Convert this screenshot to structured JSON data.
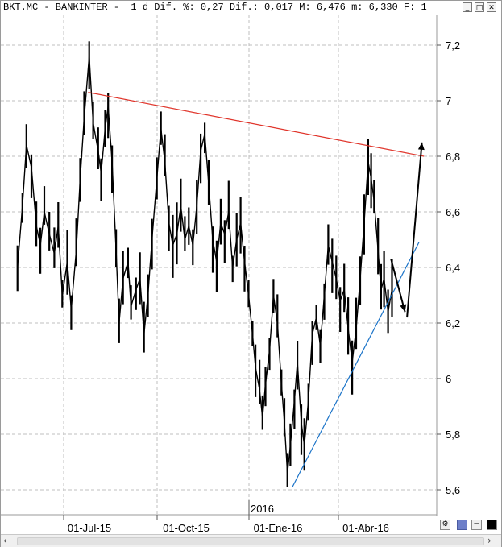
{
  "window": {
    "title": "BKT.MC - BANKINTER -  1 d Dif. %: 0,27 Dif.: 0,017 M: 6,476 m: 6,330 F: 1"
  },
  "colors": {
    "resistance": "#e0342a",
    "support": "#1a73c8",
    "grid": "#bfbfbf",
    "price": "#000000"
  },
  "chart_data": {
    "type": "line",
    "title": "",
    "xlabel": "",
    "ylabel": "",
    "ylim": [
      5.55,
      7.35
    ],
    "yticks": [
      "7,2",
      "7",
      "6,8",
      "6,6",
      "6,4",
      "6,2",
      "6",
      "5,8",
      "5,6"
    ],
    "ytick_values": [
      7.2,
      7.0,
      6.8,
      6.6,
      6.4,
      6.2,
      6.0,
      5.8,
      5.6
    ],
    "xticks": [
      "01-Jul-15",
      "01-Oct-15",
      "01-Ene-16",
      "01-Abr-16"
    ],
    "year_marker": "2016",
    "grid": true,
    "series": [
      {
        "points": [
          [
            "2015-05-14",
            6.4
          ],
          [
            "2015-05-19",
            6.62
          ],
          [
            "2015-05-23",
            6.84
          ],
          [
            "2015-05-28",
            6.76
          ],
          [
            "2015-06-02",
            6.55
          ],
          [
            "2015-06-06",
            6.48
          ],
          [
            "2015-06-10",
            6.6
          ],
          [
            "2015-06-15",
            6.52
          ],
          [
            "2015-06-20",
            6.45
          ],
          [
            "2015-06-24",
            6.55
          ],
          [
            "2015-06-28",
            6.3
          ],
          [
            "2015-07-03",
            6.42
          ],
          [
            "2015-07-07",
            6.25
          ],
          [
            "2015-07-12",
            6.46
          ],
          [
            "2015-07-16",
            6.72
          ],
          [
            "2015-07-20",
            6.94
          ],
          [
            "2015-07-25",
            7.16
          ],
          [
            "2015-07-29",
            6.92
          ],
          [
            "2015-08-03",
            6.82
          ],
          [
            "2015-08-06",
            6.74
          ],
          [
            "2015-08-10",
            6.9
          ],
          [
            "2015-08-13",
            6.98
          ],
          [
            "2015-08-17",
            6.78
          ],
          [
            "2015-08-21",
            6.46
          ],
          [
            "2015-08-24",
            6.2
          ],
          [
            "2015-08-28",
            6.36
          ],
          [
            "2015-09-02",
            6.42
          ],
          [
            "2015-09-05",
            6.26
          ],
          [
            "2015-09-10",
            6.32
          ],
          [
            "2015-09-14",
            6.36
          ],
          [
            "2015-09-18",
            6.16
          ],
          [
            "2015-09-22",
            6.3
          ],
          [
            "2015-09-26",
            6.5
          ],
          [
            "2015-10-01",
            6.72
          ],
          [
            "2015-10-05",
            6.9
          ],
          [
            "2015-10-09",
            6.78
          ],
          [
            "2015-10-13",
            6.56
          ],
          [
            "2015-10-17",
            6.48
          ],
          [
            "2015-10-21",
            6.52
          ],
          [
            "2015-10-25",
            6.62
          ],
          [
            "2015-10-29",
            6.5
          ],
          [
            "2015-11-02",
            6.55
          ],
          [
            "2015-11-06",
            6.48
          ],
          [
            "2015-11-10",
            6.62
          ],
          [
            "2015-11-14",
            6.82
          ],
          [
            "2015-11-18",
            6.88
          ],
          [
            "2015-11-22",
            6.7
          ],
          [
            "2015-11-26",
            6.5
          ],
          [
            "2015-11-30",
            6.42
          ],
          [
            "2015-12-04",
            6.56
          ],
          [
            "2015-12-08",
            6.52
          ],
          [
            "2015-12-12",
            6.6
          ],
          [
            "2015-12-16",
            6.4
          ],
          [
            "2015-12-20",
            6.5
          ],
          [
            "2015-12-24",
            6.56
          ],
          [
            "2015-12-28",
            6.42
          ],
          [
            "2016-01-01",
            6.3
          ],
          [
            "2016-01-05",
            6.16
          ],
          [
            "2016-01-08",
            6.04
          ],
          [
            "2016-01-12",
            5.96
          ],
          [
            "2016-01-15",
            5.86
          ],
          [
            "2016-01-18",
            5.98
          ],
          [
            "2016-01-22",
            6.1
          ],
          [
            "2016-01-26",
            6.3
          ],
          [
            "2016-01-30",
            6.2
          ],
          [
            "2016-02-03",
            5.98
          ],
          [
            "2016-02-06",
            5.84
          ],
          [
            "2016-02-09",
            5.66
          ],
          [
            "2016-02-12",
            5.76
          ],
          [
            "2016-02-16",
            5.92
          ],
          [
            "2016-02-19",
            6.06
          ],
          [
            "2016-02-23",
            5.84
          ],
          [
            "2016-02-26",
            5.76
          ],
          [
            "2016-03-01",
            5.92
          ],
          [
            "2016-03-05",
            6.16
          ],
          [
            "2016-03-09",
            6.22
          ],
          [
            "2016-03-13",
            6.12
          ],
          [
            "2016-03-17",
            6.3
          ],
          [
            "2016-03-21",
            6.48
          ],
          [
            "2016-03-25",
            6.42
          ],
          [
            "2016-03-29",
            6.36
          ],
          [
            "2016-04-02",
            6.28
          ],
          [
            "2016-04-06",
            6.32
          ],
          [
            "2016-04-10",
            6.18
          ],
          [
            "2016-04-14",
            6.06
          ],
          [
            "2016-04-18",
            6.18
          ],
          [
            "2016-04-22",
            6.36
          ],
          [
            "2016-04-26",
            6.56
          ],
          [
            "2016-04-30",
            6.78
          ],
          [
            "2016-05-03",
            6.72
          ],
          [
            "2016-05-06",
            6.64
          ],
          [
            "2016-05-10",
            6.46
          ],
          [
            "2016-05-13",
            6.32
          ],
          [
            "2016-05-16",
            6.36
          ],
          [
            "2016-05-20",
            6.24
          ],
          [
            "2016-05-24",
            6.32
          ]
        ]
      }
    ],
    "annotations": {
      "resistance_line": [
        [
          "2015-07-24",
          7.03
        ],
        [
          "2016-06-25",
          6.8
        ]
      ],
      "support_line": [
        [
          "2016-02-14",
          5.61
        ],
        [
          "2016-06-20",
          6.49
        ]
      ],
      "arrow_down": [
        [
          "2016-05-23",
          6.43
        ],
        [
          "2016-06-06",
          6.24
        ]
      ],
      "arrow_up": [
        [
          "2016-06-08",
          6.22
        ],
        [
          "2016-06-23",
          6.85
        ]
      ]
    }
  }
}
